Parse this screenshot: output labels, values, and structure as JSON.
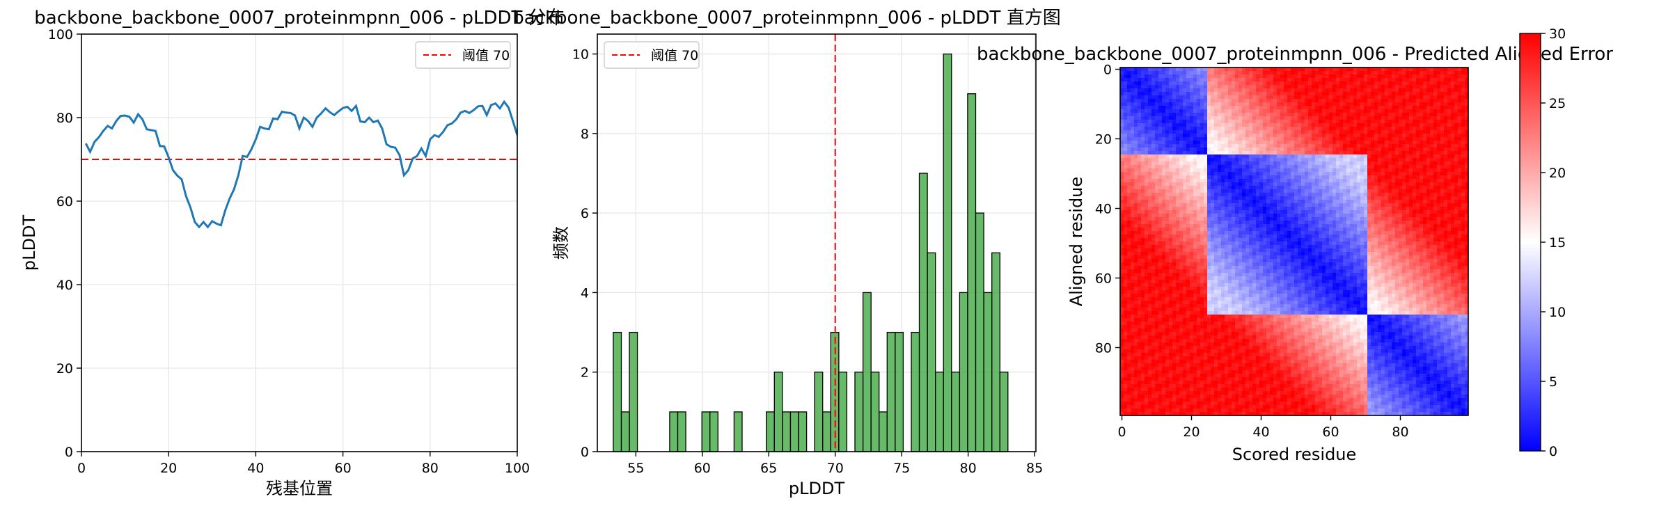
{
  "chart_data": [
    {
      "type": "line",
      "title": "backbone_backbone_0007_proteinmpnn_006 - pLDDT 分布",
      "xlabel": "残基位置",
      "ylabel": "pLDDT",
      "xlim": [
        0,
        100
      ],
      "ylim": [
        0,
        100
      ],
      "xticks": [
        0,
        20,
        40,
        60,
        80,
        100
      ],
      "yticks": [
        0,
        20,
        40,
        60,
        80,
        100
      ],
      "grid": true,
      "legend_position": "top-right",
      "colors": {
        "line": "#1f77b4",
        "threshold": "#ff0000"
      },
      "threshold": {
        "value": 70,
        "label": "阈值 70"
      },
      "x": [
        1,
        2,
        3,
        4,
        5,
        6,
        7,
        8,
        9,
        10,
        11,
        12,
        13,
        14,
        15,
        16,
        17,
        18,
        19,
        20,
        21,
        22,
        23,
        24,
        25,
        26,
        27,
        28,
        29,
        30,
        31,
        32,
        33,
        34,
        35,
        36,
        37,
        38,
        39,
        40,
        41,
        42,
        43,
        44,
        45,
        46,
        47,
        48,
        49,
        50,
        51,
        52,
        53,
        54,
        55,
        56,
        57,
        58,
        59,
        60,
        61,
        62,
        63,
        64,
        65,
        66,
        67,
        68,
        69,
        70,
        71,
        72,
        73,
        74,
        75,
        76,
        77,
        78,
        79,
        80,
        81,
        82,
        83,
        84,
        85,
        86,
        87,
        88,
        89,
        90,
        91,
        92,
        93,
        94,
        95,
        96,
        97,
        98,
        99,
        100
      ],
      "values": [
        73.8,
        71.8,
        74.2,
        75.3,
        76.8,
        78,
        77.4,
        79.2,
        80.4,
        80.5,
        80.2,
        78.8,
        80.8,
        79.6,
        77.2,
        77,
        76.8,
        73.2,
        73.1,
        70.5,
        67.4,
        66.1,
        65.2,
        61.2,
        58.5,
        55,
        53.8,
        55,
        53.8,
        55.2,
        54.6,
        54.2,
        57.8,
        60.6,
        62.8,
        66.2,
        70.8,
        70.6,
        72.4,
        74.8,
        77.8,
        77.4,
        77.2,
        79.8,
        79.6,
        81.4,
        81.2,
        81.1,
        80.5,
        77.4,
        80,
        79.2,
        77.8,
        80,
        81,
        82.2,
        81.3,
        80.6,
        81.5,
        82.3,
        82.6,
        81.6,
        82.8,
        79.1,
        78.9,
        80,
        78.9,
        79.3,
        77.4,
        73.6,
        73,
        72.8,
        71,
        66.2,
        67.4,
        70.2,
        70.8,
        72.6,
        70.8,
        74.8,
        75.8,
        75.4,
        76.6,
        78.2,
        78.6,
        79.6,
        81.2,
        81.6,
        81.1,
        81.8,
        82.7,
        82.8,
        80.6,
        83,
        83.4,
        82.2,
        83.8,
        82.4,
        79.2,
        75.8
      ]
    },
    {
      "type": "bar",
      "title": "backbone_backbone_0007_proteinmpnn_006 - pLDDT 直方图",
      "xlabel": "pLDDT",
      "ylabel": "频数",
      "xlim": [
        52.1,
        85.1
      ],
      "ylim": [
        0,
        10.5
      ],
      "xticks": [
        55,
        60,
        65,
        70,
        75,
        80,
        85
      ],
      "yticks": [
        0,
        2,
        4,
        6,
        8,
        10
      ],
      "grid": true,
      "legend_position": "top-left",
      "colors": {
        "bar": "#2ca02c",
        "edge": "#000000",
        "threshold": "#ff0000"
      },
      "threshold": {
        "value": 70,
        "label": "阈值 70"
      },
      "bin_start": 53.3,
      "bin_width": 0.606,
      "values": [
        3,
        1,
        3,
        0,
        0,
        0,
        0,
        1,
        1,
        0,
        0,
        1,
        1,
        0,
        0,
        1,
        0,
        0,
        0,
        1,
        2,
        1,
        1,
        1,
        0,
        2,
        1,
        3,
        2,
        0,
        2,
        4,
        2,
        1,
        3,
        3,
        0,
        3,
        7,
        5,
        2,
        10,
        2,
        4,
        9,
        6,
        4,
        5,
        2
      ]
    },
    {
      "type": "heatmap",
      "title": "backbone_backbone_0007_proteinmpnn_006 - Predicted Aligned Error",
      "xlabel": "Scored residue",
      "ylabel": "Aligned residue",
      "xticks": [
        0,
        20,
        40,
        60,
        80
      ],
      "yticks": [
        0,
        20,
        40,
        60,
        80
      ],
      "size": 100,
      "colormap": "bwr",
      "color_range": [
        0,
        30
      ],
      "colorbar_ticks": [
        0,
        5,
        10,
        15,
        20,
        25,
        30
      ],
      "domains": [
        [
          0,
          24
        ],
        [
          25,
          70
        ],
        [
          71,
          99
        ]
      ]
    }
  ]
}
